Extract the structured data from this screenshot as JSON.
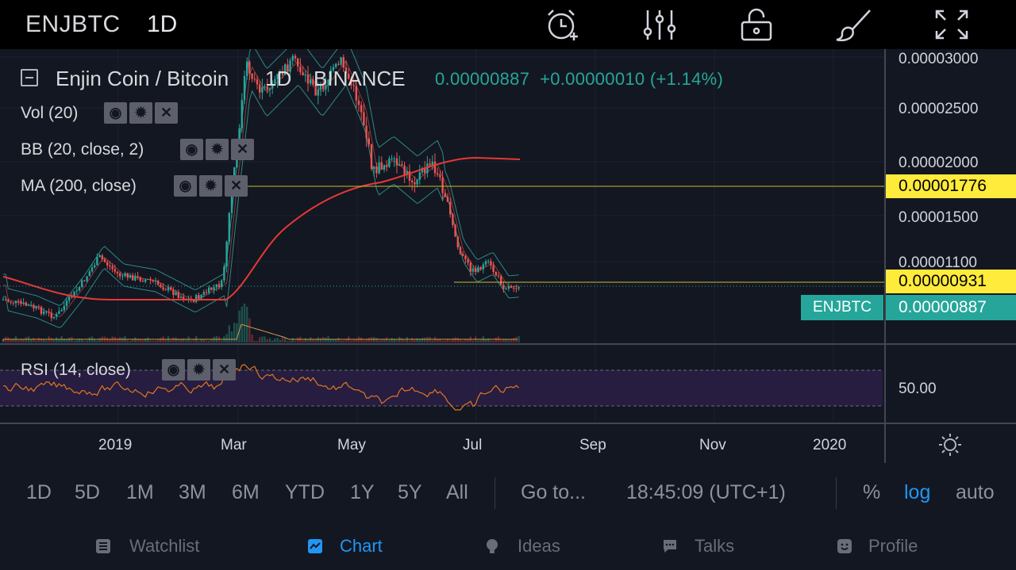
{
  "header": {
    "symbol": "ENJBTC",
    "timeframe": "1D",
    "icons": [
      "alarm-add-icon",
      "indicators-icon",
      "unlock-icon",
      "drawing-brush-icon",
      "fullscreen-icon"
    ]
  },
  "legend": {
    "title": "Enjin Coin / Bitcoin",
    "interval": "1D",
    "exchange": "BINANCE",
    "price": "0.00000887",
    "change": "+0.00000010 (+1.14%)"
  },
  "indicators": [
    {
      "label": "Vol (20)"
    },
    {
      "label": "BB (20, close, 2)"
    },
    {
      "label": "MA (200, close)"
    },
    {
      "label": "RSI (14, close)"
    }
  ],
  "price_axis": {
    "ticks": [
      "0.00003000",
      "0.00002500",
      "0.00002000",
      "0.00001500",
      "0.00001100"
    ],
    "line_1": "0.00001776",
    "line_2": "0.00000931",
    "last_symbol": "ENJBTC",
    "last_price": "0.00000887",
    "rsi_tick": "50.00"
  },
  "time_axis": {
    "ticks": [
      "2019",
      "Mar",
      "May",
      "Jul",
      "Sep",
      "Nov",
      "2020"
    ]
  },
  "ranges": {
    "items": [
      "1D",
      "5D",
      "1M",
      "3M",
      "6M",
      "YTD",
      "1Y",
      "5Y",
      "All"
    ],
    "goto": "Go to...",
    "time": "18:45:09 (UTC+1)",
    "percent": "%",
    "log": "log",
    "auto": "auto"
  },
  "tabs": [
    {
      "label": "Watchlist",
      "icon": "watchlist-icon"
    },
    {
      "label": "Chart",
      "icon": "chart-icon"
    },
    {
      "label": "Ideas",
      "icon": "ideas-icon"
    },
    {
      "label": "Talks",
      "icon": "talks-icon"
    },
    {
      "label": "Profile",
      "icon": "profile-icon"
    }
  ],
  "colors": {
    "up": "#26a69a",
    "down": "#ef5350",
    "ma": "#e53935",
    "highlight": "#ffeb3b",
    "accent": "#2196f3",
    "rsi": "#e0761e"
  }
}
